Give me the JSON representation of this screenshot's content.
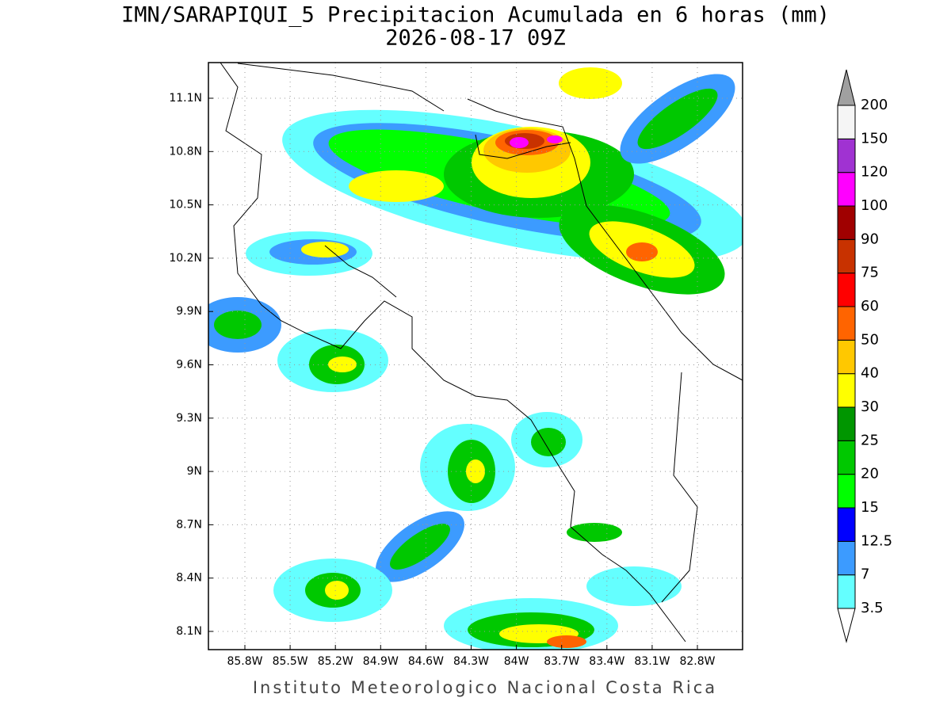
{
  "map": {
    "title": "IMN/SARAPIQUI_5 Precipitacion Acumulada en 6 horas (mm)",
    "subtitle": "2026-08-17 09Z",
    "footer": "Instituto Meteorologico Nacional Costa Rica",
    "lon_labels": [
      "85.8W",
      "85.5W",
      "85.2W",
      "84.9W",
      "84.6W",
      "84.3W",
      "84W",
      "83.7W",
      "83.4W",
      "83.1W",
      "82.8W"
    ],
    "lat_labels": [
      "11.1N",
      "10.8N",
      "10.5N",
      "10.2N",
      "9.9N",
      "9.6N",
      "9.3N",
      "9N",
      "8.7N",
      "8.4N",
      "8.1N"
    ],
    "grid": true
  },
  "colorbar": {
    "levels": [
      3.5,
      7,
      12.5,
      15,
      20,
      25,
      30,
      40,
      50,
      60,
      75,
      90,
      100,
      120,
      150,
      200
    ],
    "colors": [
      "#64ffff",
      "#3c9bff",
      "#0000ff",
      "#00ff00",
      "#00c800",
      "#009600",
      "#ffff00",
      "#ffc800",
      "#ff6400",
      "#ff0000",
      "#c83200",
      "#a00000",
      "#ff00ff",
      "#a032d2",
      "#f5f5f5"
    ],
    "over_color": "#a0a0a0",
    "under_color": "#ffffff"
  }
}
